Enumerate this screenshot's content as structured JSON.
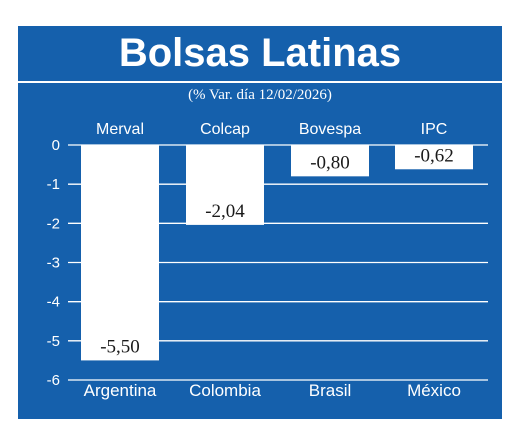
{
  "colors": {
    "background": "#1560ac",
    "bar": "#ffffff",
    "grid": "#ffffff",
    "text": "#ffffff",
    "label_text": "#1a1a1a"
  },
  "chart_data": {
    "type": "bar",
    "title": "Bolsas Latinas",
    "subtitle": "(% Var. día 12/02/2026)",
    "categories": [
      "Argentina",
      "Colombia",
      "Brasil",
      "México"
    ],
    "index_names": [
      "Merval",
      "Colcap",
      "Bovespa",
      "IPC"
    ],
    "values": [
      -5.5,
      -2.04,
      -0.8,
      -0.62
    ],
    "value_labels": [
      "-5,50",
      "-2,04",
      "-0,80",
      "-0,62"
    ],
    "y_ticks": [
      "0",
      "-1",
      "-2",
      "-3",
      "-4",
      "-5",
      "-6"
    ],
    "y_tick_values": [
      0,
      -1,
      -2,
      -3,
      -4,
      -5,
      -6
    ],
    "ylim": [
      -6,
      0
    ],
    "grid": true,
    "legend": "none"
  }
}
